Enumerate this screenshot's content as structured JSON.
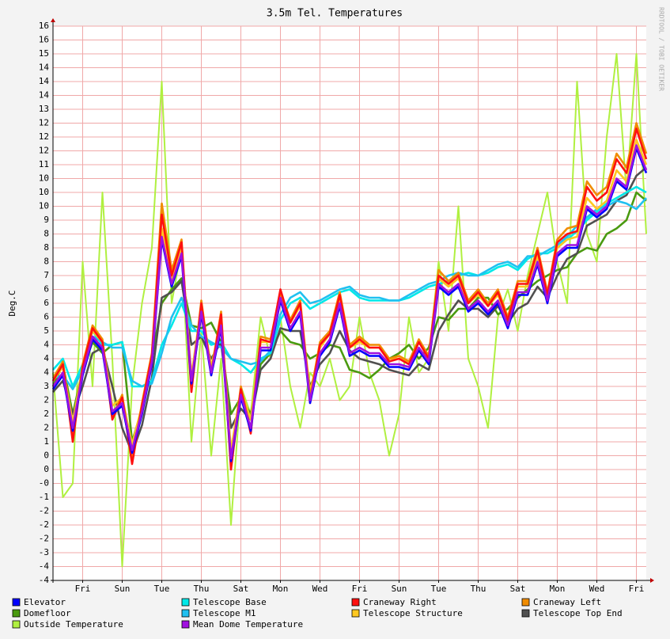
{
  "chart_data": {
    "type": "line",
    "title": "3.5m Tel. Temperatures",
    "y_label": "Deg.C",
    "watermark": "RRDTOOL / TOBI OETIKER",
    "grid": true,
    "x": [
      0,
      0.5,
      1,
      1.5,
      2,
      2.5,
      3,
      3.5,
      4,
      4.5,
      5,
      5.5,
      6,
      6.5,
      7,
      7.5,
      8,
      8.5,
      9,
      9.5,
      10,
      10.5,
      11,
      11.5,
      12,
      12.5,
      13,
      13.5,
      14,
      14.5,
      15,
      15.5,
      16,
      16.5,
      17,
      17.5,
      18,
      18.5,
      19,
      19.5,
      20,
      20.5,
      21,
      21.5,
      22,
      22.5,
      23,
      23.5,
      24,
      24.5,
      25,
      25.5,
      26,
      26.5,
      27,
      27.5,
      28,
      28.5,
      29,
      29.5,
      30
    ],
    "xlim": [
      0,
      30
    ],
    "xticks": [
      {
        "value": 1.5,
        "label": "Fri"
      },
      {
        "value": 3.5,
        "label": "Sun"
      },
      {
        "value": 5.5,
        "label": "Tue"
      },
      {
        "value": 7.5,
        "label": "Thu"
      },
      {
        "value": 9.5,
        "label": "Sat"
      },
      {
        "value": 11.5,
        "label": "Mon"
      },
      {
        "value": 13.5,
        "label": "Wed"
      },
      {
        "value": 15.5,
        "label": "Fri"
      },
      {
        "value": 17.5,
        "label": "Sun"
      },
      {
        "value": 19.5,
        "label": "Tue"
      },
      {
        "value": 21.5,
        "label": "Thu"
      },
      {
        "value": 23.5,
        "label": "Sat"
      },
      {
        "value": 25.5,
        "label": "Mon"
      },
      {
        "value": 27.5,
        "label": "Wed"
      },
      {
        "value": 29.5,
        "label": "Fri"
      }
    ],
    "ylim": [
      -4,
      16
    ],
    "yticks": [
      16,
      {
        "value": 15.5,
        "label": "16"
      },
      15,
      {
        "value": 14.5,
        "label": "14"
      },
      14,
      {
        "value": 13.5,
        "label": "14"
      },
      13,
      {
        "value": 12.5,
        "label": "12"
      },
      12,
      {
        "value": 11.5,
        "label": "12"
      },
      11,
      {
        "value": 10.5,
        "label": "10"
      },
      10,
      {
        "value": 9.5,
        "label": "10"
      },
      9,
      {
        "value": 8.5,
        "label": "8"
      },
      8,
      {
        "value": 7.5,
        "label": "8"
      },
      7,
      {
        "value": 6.5,
        "label": "6"
      },
      6,
      {
        "value": 5.5,
        "label": "6"
      },
      5,
      {
        "value": 4.5,
        "label": "4"
      },
      4,
      {
        "value": 3.5,
        "label": "4"
      },
      3,
      {
        "value": 2.5,
        "label": "2"
      },
      2,
      {
        "value": 1.5,
        "label": "2"
      },
      1,
      {
        "value": 0.5,
        "label": "0"
      },
      0,
      {
        "value": -0.5,
        "label": "-0"
      },
      -1,
      {
        "value": -1.5,
        "label": "-2"
      },
      -2,
      {
        "value": -2.5,
        "label": "-2"
      },
      -3,
      {
        "value": -3.5,
        "label": "-4"
      },
      -4
    ],
    "series": [
      {
        "name": "Elevator",
        "color": "#0000ff",
        "values": [
          2.9,
          3.4,
          1.4,
          3.4,
          4.7,
          4.3,
          2.0,
          2.3,
          0.6,
          2.0,
          3.8,
          8.3,
          6.6,
          7.7,
          3.1,
          5.6,
          3.4,
          5.1,
          0.3,
          2.6,
          1.4,
          4.3,
          4.3,
          6.1,
          5.0,
          5.6,
          2.4,
          4.1,
          4.6,
          5.9,
          4.1,
          4.3,
          4.1,
          4.1,
          3.7,
          3.7,
          3.6,
          4.3,
          3.8,
          6.6,
          6.3,
          6.6,
          5.7,
          6.0,
          5.6,
          6.0,
          5.1,
          6.3,
          6.3,
          7.4,
          6.0,
          7.7,
          8.0,
          8.0,
          9.4,
          9.1,
          9.4,
          10.4,
          10.1,
          11.6,
          10.7
        ]
      },
      {
        "name": "Telescope Base",
        "color": "#00e8e8",
        "values": [
          3.6,
          4.0,
          3.0,
          3.8,
          5.0,
          4.5,
          4.5,
          4.6,
          3.0,
          3.0,
          3.2,
          4.5,
          5.2,
          6.0,
          5.0,
          5.0,
          4.5,
          4.6,
          4.0,
          3.8,
          3.5,
          4.0,
          4.2,
          5.4,
          6.0,
          6.2,
          5.8,
          6.0,
          6.2,
          6.4,
          6.5,
          6.2,
          6.1,
          6.1,
          6.1,
          6.1,
          6.2,
          6.4,
          6.6,
          6.7,
          6.8,
          7.0,
          7.1,
          7.0,
          7.1,
          7.3,
          7.4,
          7.2,
          7.6,
          7.8,
          7.8,
          8.0,
          8.3,
          8.6,
          9.0,
          9.3,
          9.6,
          9.8,
          10.0,
          10.2,
          10.0
        ]
      },
      {
        "name": "Craneway Right",
        "color": "#ff1010",
        "values": [
          3.2,
          3.8,
          1.0,
          3.7,
          5.1,
          4.6,
          1.8,
          2.6,
          0.2,
          2.3,
          4.1,
          9.2,
          7.0,
          8.2,
          2.8,
          6.0,
          3.4,
          5.6,
          0.0,
          2.9,
          1.3,
          4.7,
          4.6,
          6.5,
          5.3,
          6.0,
          2.4,
          4.5,
          4.9,
          6.3,
          4.4,
          4.7,
          4.4,
          4.4,
          3.9,
          4.0,
          3.8,
          4.6,
          4.0,
          7.0,
          6.7,
          7.0,
          6.0,
          6.4,
          5.9,
          6.4,
          5.4,
          6.7,
          6.7,
          7.9,
          6.3,
          8.2,
          8.5,
          8.6,
          10.2,
          9.7,
          10.0,
          11.2,
          10.7,
          12.3,
          11.2
        ]
      },
      {
        "name": "Craneway Left",
        "color": "#f08c00",
        "values": [
          3.3,
          3.9,
          1.2,
          3.8,
          5.2,
          4.7,
          1.9,
          2.7,
          0.3,
          2.4,
          4.2,
          9.6,
          7.2,
          8.3,
          2.9,
          6.1,
          3.5,
          5.7,
          0.2,
          3.0,
          1.4,
          4.8,
          4.7,
          6.4,
          5.4,
          6.1,
          2.6,
          4.6,
          5.0,
          6.4,
          4.5,
          4.8,
          4.5,
          4.5,
          4.0,
          4.1,
          3.9,
          4.7,
          4.1,
          7.2,
          6.8,
          7.1,
          6.1,
          6.5,
          6.0,
          6.5,
          5.5,
          6.8,
          6.8,
          8.0,
          6.4,
          8.3,
          8.7,
          8.8,
          10.4,
          9.9,
          10.2,
          11.4,
          10.9,
          12.5,
          11.4
        ]
      },
      {
        "name": "Domefloor",
        "color": "#4a9a10",
        "values": [
          3.0,
          3.8,
          2.0,
          3.6,
          4.6,
          4.2,
          4.5,
          4.6,
          1.0,
          2.2,
          4.0,
          6.0,
          6.5,
          6.9,
          5.2,
          5.1,
          5.3,
          4.6,
          2.0,
          2.6,
          2.0,
          3.8,
          4.2,
          5.0,
          4.6,
          4.5,
          4.0,
          4.2,
          4.5,
          4.4,
          3.6,
          3.5,
          3.3,
          3.6,
          4.0,
          4.2,
          4.5,
          4.0,
          4.4,
          5.5,
          5.4,
          5.8,
          5.8,
          6.2,
          6.2,
          5.6,
          5.8,
          6.2,
          6.5,
          6.8,
          7.0,
          7.2,
          7.3,
          7.8,
          8.0,
          7.9,
          8.5,
          8.7,
          9.0,
          10.0,
          9.7
        ]
      },
      {
        "name": "Telescope M1",
        "color": "#20c0f0",
        "values": [
          3.3,
          3.4,
          2.9,
          3.6,
          4.8,
          4.6,
          4.4,
          4.4,
          3.2,
          3.0,
          3.1,
          4.2,
          5.5,
          6.2,
          5.2,
          4.8,
          4.6,
          4.4,
          4.0,
          3.9,
          3.8,
          3.9,
          4.3,
          5.6,
          6.2,
          6.4,
          6.0,
          6.1,
          6.3,
          6.5,
          6.6,
          6.3,
          6.2,
          6.2,
          6.1,
          6.1,
          6.3,
          6.5,
          6.7,
          6.8,
          7.0,
          7.1,
          7.0,
          7.0,
          7.2,
          7.4,
          7.5,
          7.3,
          7.7,
          7.7,
          7.9,
          8.1,
          8.4,
          8.8,
          9.1,
          9.4,
          9.5,
          9.7,
          9.6,
          9.4,
          9.8
        ]
      },
      {
        "name": "Telescope Structure",
        "color": "#ffc820",
        "values": [
          3.2,
          3.7,
          1.7,
          3.7,
          5.0,
          4.6,
          2.3,
          2.6,
          0.9,
          2.3,
          4.1,
          8.7,
          6.9,
          8.0,
          3.4,
          5.9,
          3.7,
          5.4,
          0.7,
          2.9,
          1.8,
          4.6,
          4.6,
          6.4,
          5.3,
          5.9,
          2.8,
          4.4,
          4.9,
          6.2,
          4.4,
          4.6,
          4.4,
          4.4,
          4.0,
          4.0,
          3.9,
          4.6,
          4.1,
          6.9,
          6.6,
          6.9,
          6.0,
          6.3,
          5.9,
          6.3,
          5.4,
          6.6,
          6.6,
          7.7,
          6.3,
          8.0,
          8.3,
          8.4,
          9.8,
          9.4,
          9.7,
          10.8,
          10.4,
          11.9,
          11.0
        ]
      },
      {
        "name": "Telescope Top End",
        "color": "#505050",
        "values": [
          2.8,
          3.2,
          2.0,
          3.0,
          4.2,
          4.4,
          3.0,
          1.5,
          0.6,
          1.6,
          3.3,
          6.2,
          6.4,
          6.8,
          4.5,
          4.8,
          4.0,
          4.6,
          1.5,
          2.2,
          1.8,
          3.6,
          4.0,
          5.1,
          5.0,
          5.0,
          3.0,
          3.8,
          4.2,
          5.0,
          4.3,
          4.0,
          3.9,
          3.8,
          3.6,
          3.5,
          3.4,
          3.8,
          3.6,
          5.0,
          5.6,
          6.1,
          5.8,
          5.8,
          5.5,
          5.9,
          5.3,
          5.8,
          6.0,
          6.6,
          6.2,
          7.0,
          7.6,
          7.8,
          8.8,
          9.0,
          9.2,
          9.7,
          9.9,
          10.6,
          10.9
        ]
      },
      {
        "name": "Outside Temperature",
        "color": "#b0f040",
        "values": [
          3.5,
          -1.0,
          -0.5,
          7.5,
          3.0,
          10.0,
          4.0,
          -3.5,
          3.0,
          6.0,
          8.0,
          14.0,
          6.0,
          8.0,
          1.0,
          5.0,
          0.5,
          4.0,
          -2.0,
          3.0,
          2.0,
          5.5,
          4.0,
          5.5,
          3.0,
          1.5,
          3.5,
          3.0,
          4.0,
          2.5,
          3.0,
          5.5,
          3.5,
          2.5,
          0.5,
          2.0,
          5.5,
          3.5,
          4.0,
          7.5,
          5.0,
          9.5,
          4.0,
          3.0,
          1.5,
          5.5,
          6.5,
          5.0,
          7.0,
          8.5,
          10.0,
          7.5,
          6.0,
          14.0,
          8.5,
          7.5,
          12.0,
          15.0,
          10.0,
          15.0,
          8.5
        ]
      },
      {
        "name": "Mean Dome Temperature",
        "color": "#a010e0",
        "values": [
          3.0,
          3.5,
          1.5,
          3.5,
          4.8,
          4.4,
          2.1,
          2.4,
          0.7,
          2.1,
          3.9,
          8.4,
          6.7,
          7.8,
          3.2,
          5.7,
          3.5,
          5.2,
          0.4,
          2.7,
          1.5,
          4.4,
          4.4,
          6.2,
          5.1,
          5.7,
          2.5,
          4.2,
          4.7,
          6.0,
          4.2,
          4.4,
          4.2,
          4.2,
          3.8,
          3.8,
          3.7,
          4.4,
          3.9,
          6.7,
          6.4,
          6.7,
          5.8,
          6.1,
          5.7,
          6.1,
          5.2,
          6.4,
          6.4,
          7.5,
          6.1,
          7.8,
          8.1,
          8.1,
          9.5,
          9.2,
          9.5,
          10.5,
          10.2,
          11.7,
          10.8
        ]
      }
    ]
  }
}
